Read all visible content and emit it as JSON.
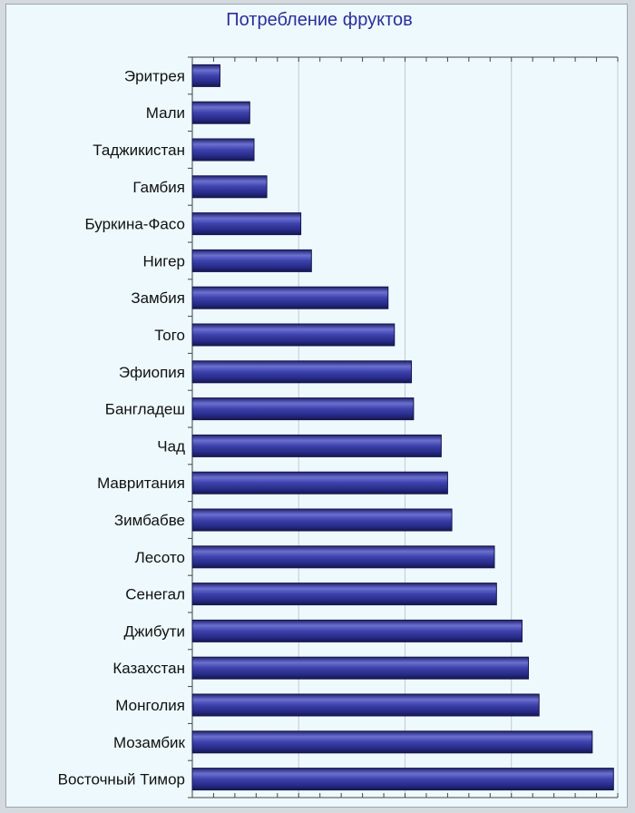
{
  "chart_data": {
    "type": "bar",
    "orientation": "horizontal",
    "title": "Потребление фруктов",
    "xlabel": "",
    "ylabel": "",
    "categories": [
      "Эритрея",
      "Мали",
      "Таджикистан",
      "Гамбия",
      "Буркина-Фасо",
      "Нигер",
      "Замбия",
      "Того",
      "Эфиопия",
      "Бангладеш",
      "Чад",
      "Мавритания",
      "Зимбабве",
      "Лесото",
      "Сенегал",
      "Джибути",
      "Казахстан",
      "Монголия",
      "Мозамбик",
      "Восточный Тимор"
    ],
    "values": [
      13,
      27,
      29,
      35,
      51,
      56,
      92,
      95,
      103,
      104,
      117,
      120,
      122,
      142,
      143,
      155,
      158,
      163,
      188,
      198
    ],
    "xlim": [
      0,
      200
    ],
    "grid": true,
    "bar_color": "#2b2f8f"
  }
}
